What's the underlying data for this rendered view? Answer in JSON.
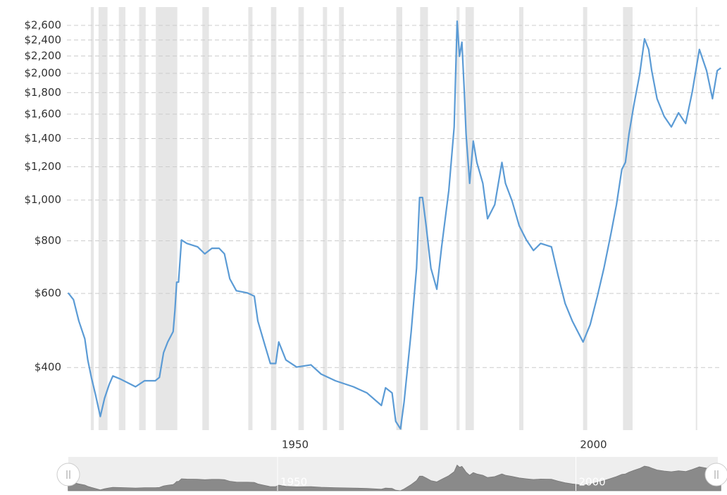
{
  "chart_data": {
    "type": "line",
    "log_scale": true,
    "grid": true,
    "color": "#5b9bd5",
    "recession_color": "#e6e6e6",
    "x": [
      1914.9,
      1915.8,
      1916.7,
      1917.7,
      1918.2,
      1918.8,
      1919.5,
      1920.3,
      1921.0,
      1921.8,
      1922.4,
      1923.6,
      1925.4,
      1926.2,
      1927.7,
      1929.5,
      1930.2,
      1930.9,
      1931.6,
      1932.5,
      1932.8,
      1933.1,
      1933.4,
      1933.9,
      1934.8,
      1936.6,
      1937.8,
      1939.0,
      1940.2,
      1941.1,
      1942.0,
      1943.1,
      1944.9,
      1946.1,
      1946.7,
      1947.9,
      1948.8,
      1949.7,
      1950.2,
      1951.4,
      1953.2,
      1955.6,
      1957.3,
      1959.7,
      1962.7,
      1965.0,
      1967.4,
      1968.1,
      1969.2,
      1969.8,
      1970.6,
      1971.2,
      1972.4,
      1973.3,
      1973.8,
      1974.3,
      1974.9,
      1975.7,
      1976.7,
      1977.5,
      1978.7,
      1979.6,
      1980.1,
      1980.5,
      1980.9,
      1981.3,
      1981.6,
      1982.2,
      1982.8,
      1983.4,
      1984.4,
      1985.2,
      1986.4,
      1987.6,
      1988.2,
      1989.3,
      1990.5,
      1991.7,
      1992.9,
      1994.1,
      1995.9,
      1997.0,
      1998.2,
      1999.4,
      2001.2,
      2002.4,
      2003.6,
      2004.7,
      2005.9,
      2006.8,
      2007.7,
      2008.3,
      2008.9,
      2009.7,
      2010.7,
      2011.5,
      2012.2,
      2012.7,
      2013.6,
      2014.8,
      2016.0,
      2017.2,
      2018.4,
      2019.5,
      2020.7,
      2021.9,
      2022.9,
      2023.7,
      2024.3
    ],
    "values": [
      602,
      580,
      516,
      468,
      417,
      379,
      344,
      306,
      338,
      365,
      382,
      376,
      365,
      360,
      372,
      372,
      379,
      434,
      460,
      487,
      547,
      638,
      638,
      804,
      789,
      774,
      745,
      768,
      768,
      745,
      650,
      609,
      602,
      591,
      516,
      451,
      409,
      409,
      460,
      417,
      401,
      406,
      386,
      372,
      360,
      348,
      325,
      358,
      348,
      298,
      286,
      331,
      487,
      689,
      1014,
      1014,
      869,
      689,
      614,
      774,
      1054,
      1492,
      2660,
      2195,
      2372,
      1808,
      1436,
      1096,
      1381,
      1229,
      1096,
      903,
      975,
      1229,
      1096,
      995,
      869,
      804,
      759,
      789,
      774,
      663,
      568,
      516,
      460,
      506,
      591,
      689,
      836,
      975,
      1183,
      1229,
      1436,
      1675,
      1992,
      2416,
      2280,
      2031,
      1741,
      1581,
      1492,
      1612,
      1520,
      1808,
      2280,
      2031,
      1741,
      2031,
      2060
    ],
    "recessions": [
      [
        1918.7,
        1919.2
      ],
      [
        1920.0,
        1921.5
      ],
      [
        1923.4,
        1924.5
      ],
      [
        1926.8,
        1927.9
      ],
      [
        1929.6,
        1933.2
      ],
      [
        1937.4,
        1938.5
      ],
      [
        1945.1,
        1945.8
      ],
      [
        1948.9,
        1949.8
      ],
      [
        1953.5,
        1954.4
      ],
      [
        1957.6,
        1958.3
      ],
      [
        1960.3,
        1961.1
      ],
      [
        1969.9,
        1970.9
      ],
      [
        1973.9,
        1975.2
      ],
      [
        1980.0,
        1980.5
      ],
      [
        1981.5,
        1982.9
      ],
      [
        1990.5,
        1991.2
      ],
      [
        2001.2,
        2001.9
      ],
      [
        2007.9,
        2009.5
      ],
      [
        2020.1,
        2020.3
      ]
    ],
    "xlim": [
      1914.7,
      2024.5
    ],
    "xticks": [
      1950,
      2000
    ],
    "ylim": [
      284,
      2820
    ],
    "yticks": [
      {
        "value": 400,
        "label": "$400"
      },
      {
        "value": 600,
        "label": "$600"
      },
      {
        "value": 800,
        "label": "$800"
      },
      {
        "value": 1000,
        "label": "$1,000"
      },
      {
        "value": 1200,
        "label": "$1,200"
      },
      {
        "value": 1400,
        "label": "$1,400"
      },
      {
        "value": 1600,
        "label": "$1,600"
      },
      {
        "value": 1800,
        "label": "$1,800"
      },
      {
        "value": 2000,
        "label": "$2,000"
      },
      {
        "value": 2200,
        "label": "$2,200"
      },
      {
        "value": 2400,
        "label": "$2,400"
      },
      {
        "value": 2600,
        "label": "$2,600"
      }
    ]
  }
}
